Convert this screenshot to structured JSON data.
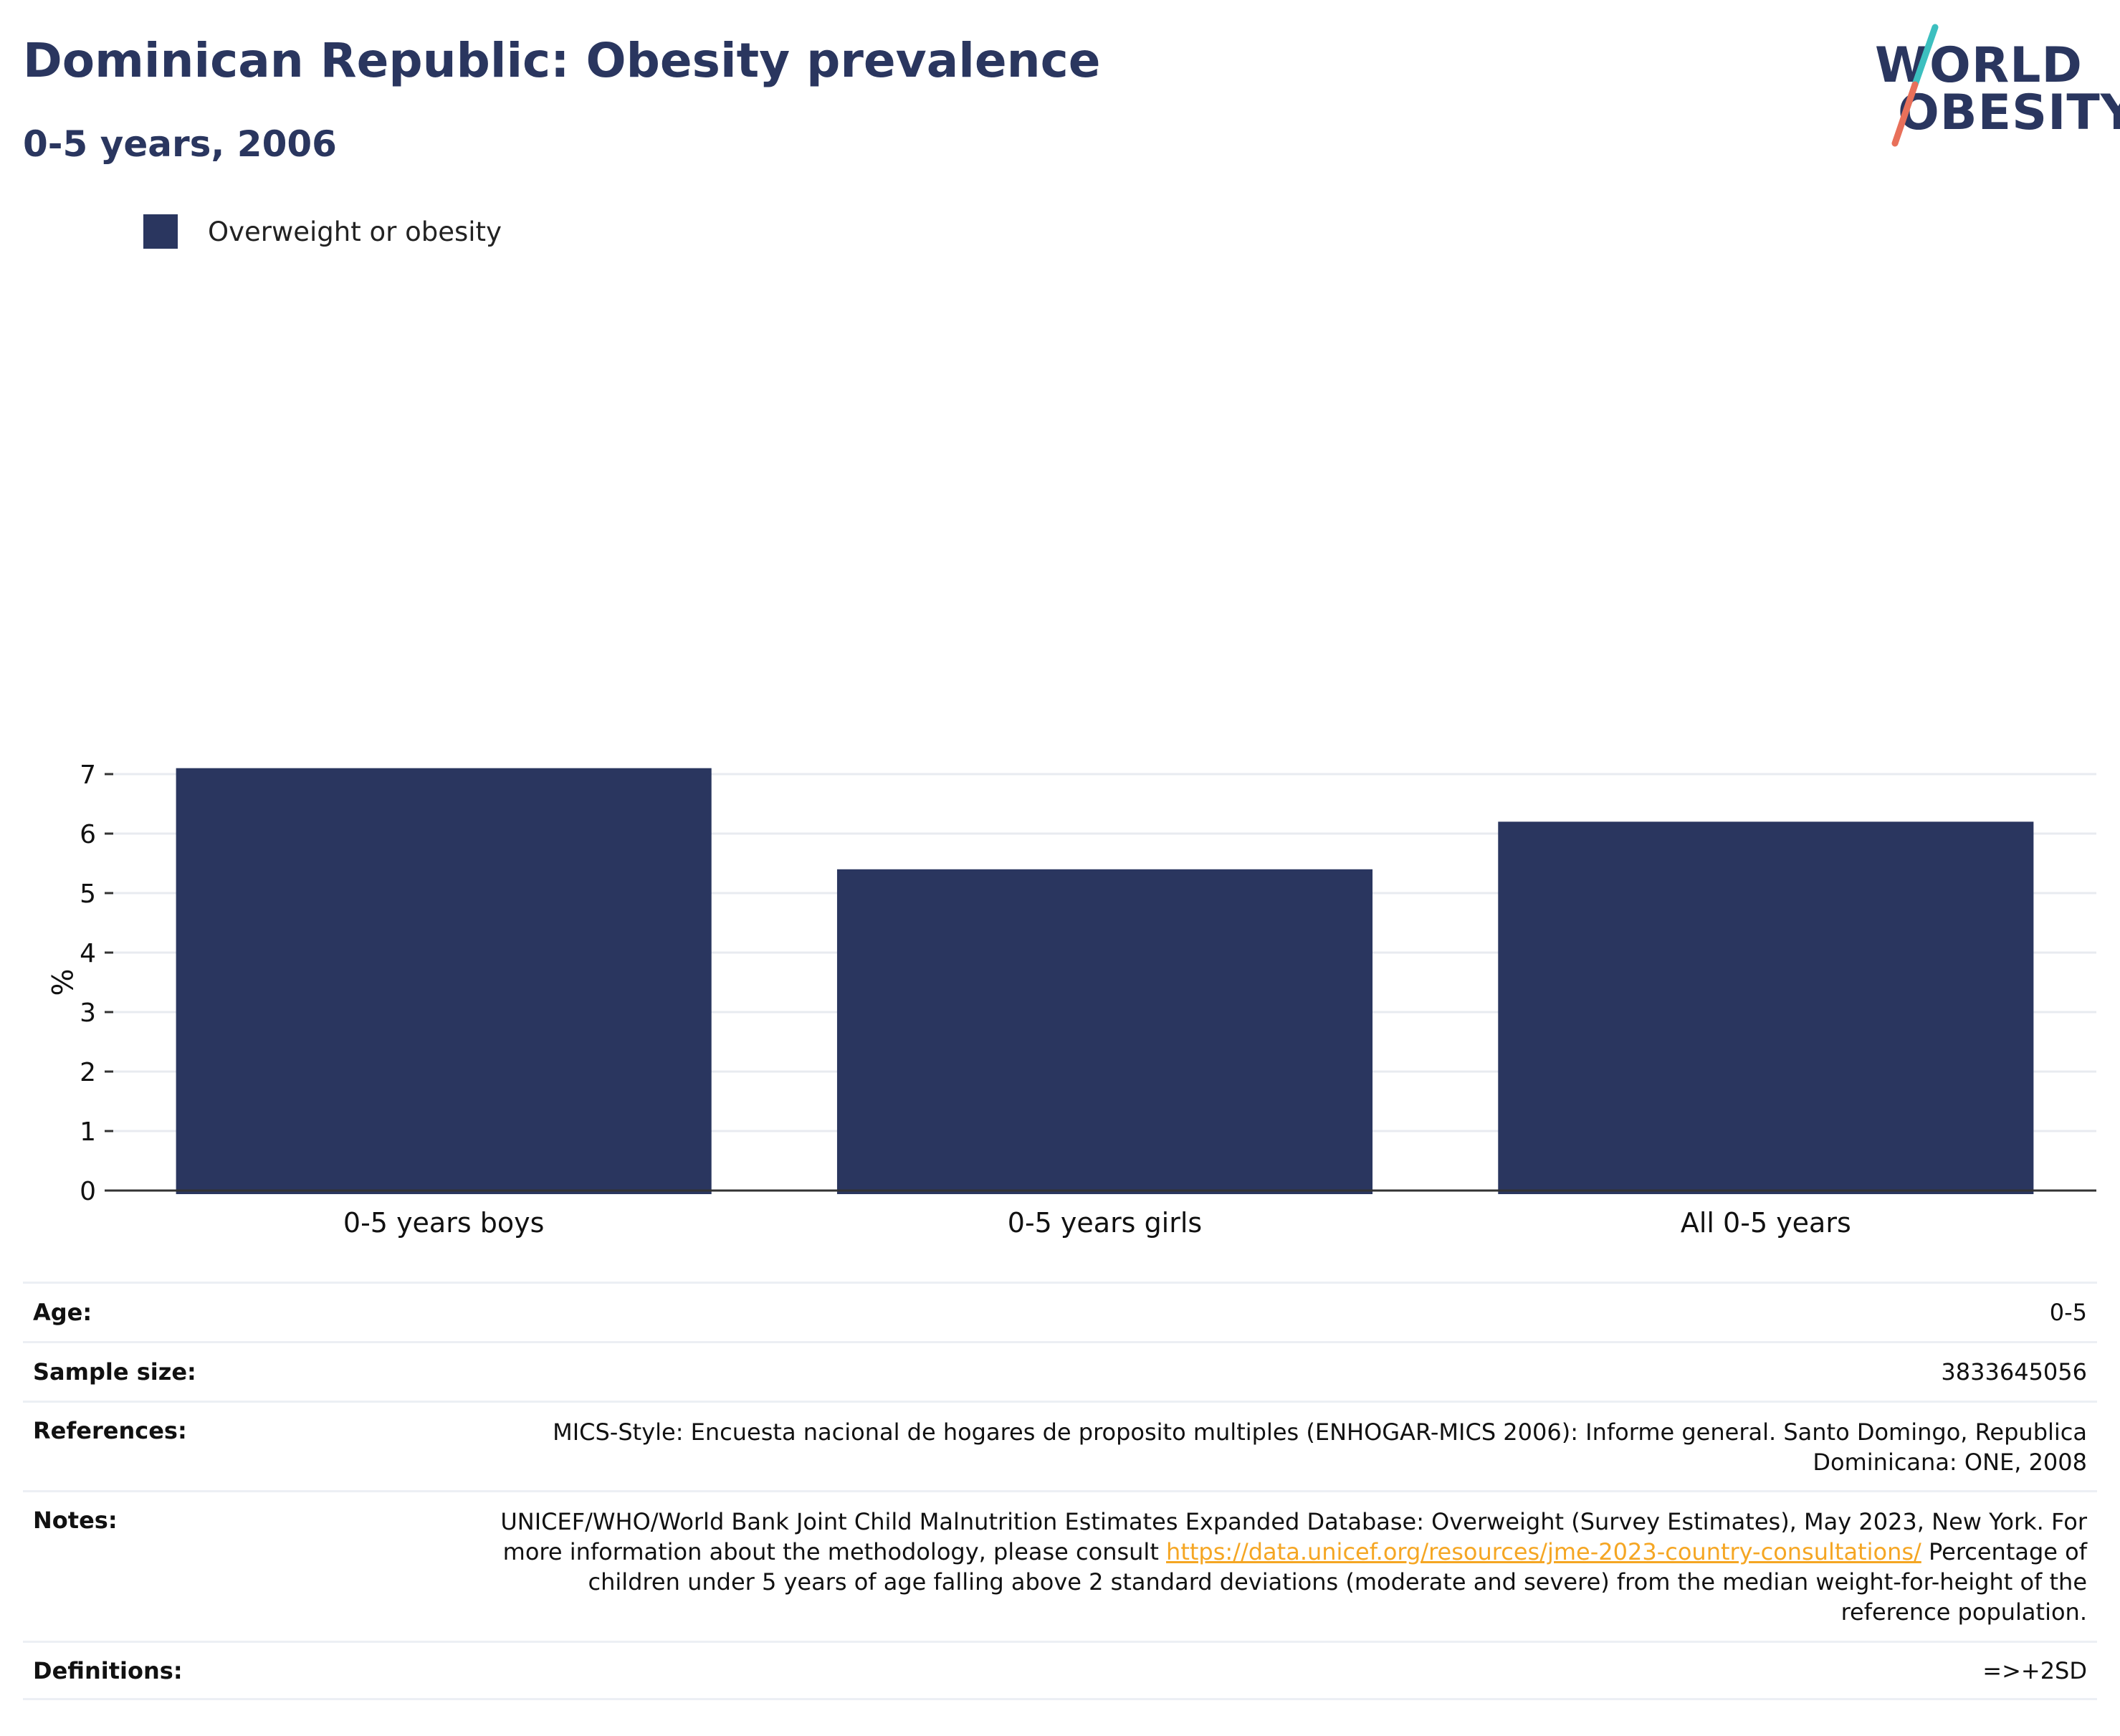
{
  "header": {
    "title": "Dominican Republic: Obesity prevalence",
    "subtitle": "0-5 years, 2006"
  },
  "logo": {
    "line1": "WORLD",
    "line2": "OBESITY",
    "colors": {
      "text": "#2a365f",
      "slash_top": "#3cbfbf",
      "slash_bottom": "#e8705a"
    }
  },
  "chart_data": {
    "type": "bar",
    "categories": [
      "0-5 years boys",
      "0-5 years girls",
      "All 0-5 years"
    ],
    "series": [
      {
        "name": "Overweight or obesity",
        "values": [
          7.1,
          5.4,
          6.2
        ],
        "color": "#2a365f"
      }
    ],
    "ylabel": "%",
    "xlabel": "",
    "ylim": [
      0,
      7
    ],
    "yticks": [
      0,
      1,
      2,
      3,
      4,
      5,
      6,
      7
    ],
    "grid": true,
    "legend_position": "top-left"
  },
  "info": {
    "age_label": "Age:",
    "age_value": "0-5",
    "sample_label": "Sample size:",
    "sample_value": "3833645056",
    "references_label": "References:",
    "references_value": "MICS-Style: Encuesta nacional de hogares de proposito multiples (ENHOGAR-MICS 2006): Informe general. Santo Domingo, Republica Dominicana: ONE, 2008",
    "notes_label": "Notes:",
    "notes_text_1": "UNICEF/WHO/World Bank Joint Child Malnutrition Estimates Expanded Database: Overweight (Survey Estimates), May 2023, New York. For more information about the methodology, please consult",
    "notes_link": "https://data.unicef.org/resources/jme-2023-country-consultations/",
    "notes_text_2": "Percentage of children under 5 years of age falling above 2 standard deviations (moderate and severe) from the median weight-for-height of the reference population.",
    "definitions_label": "Definitions:",
    "definitions_value": "=>+2SD"
  }
}
